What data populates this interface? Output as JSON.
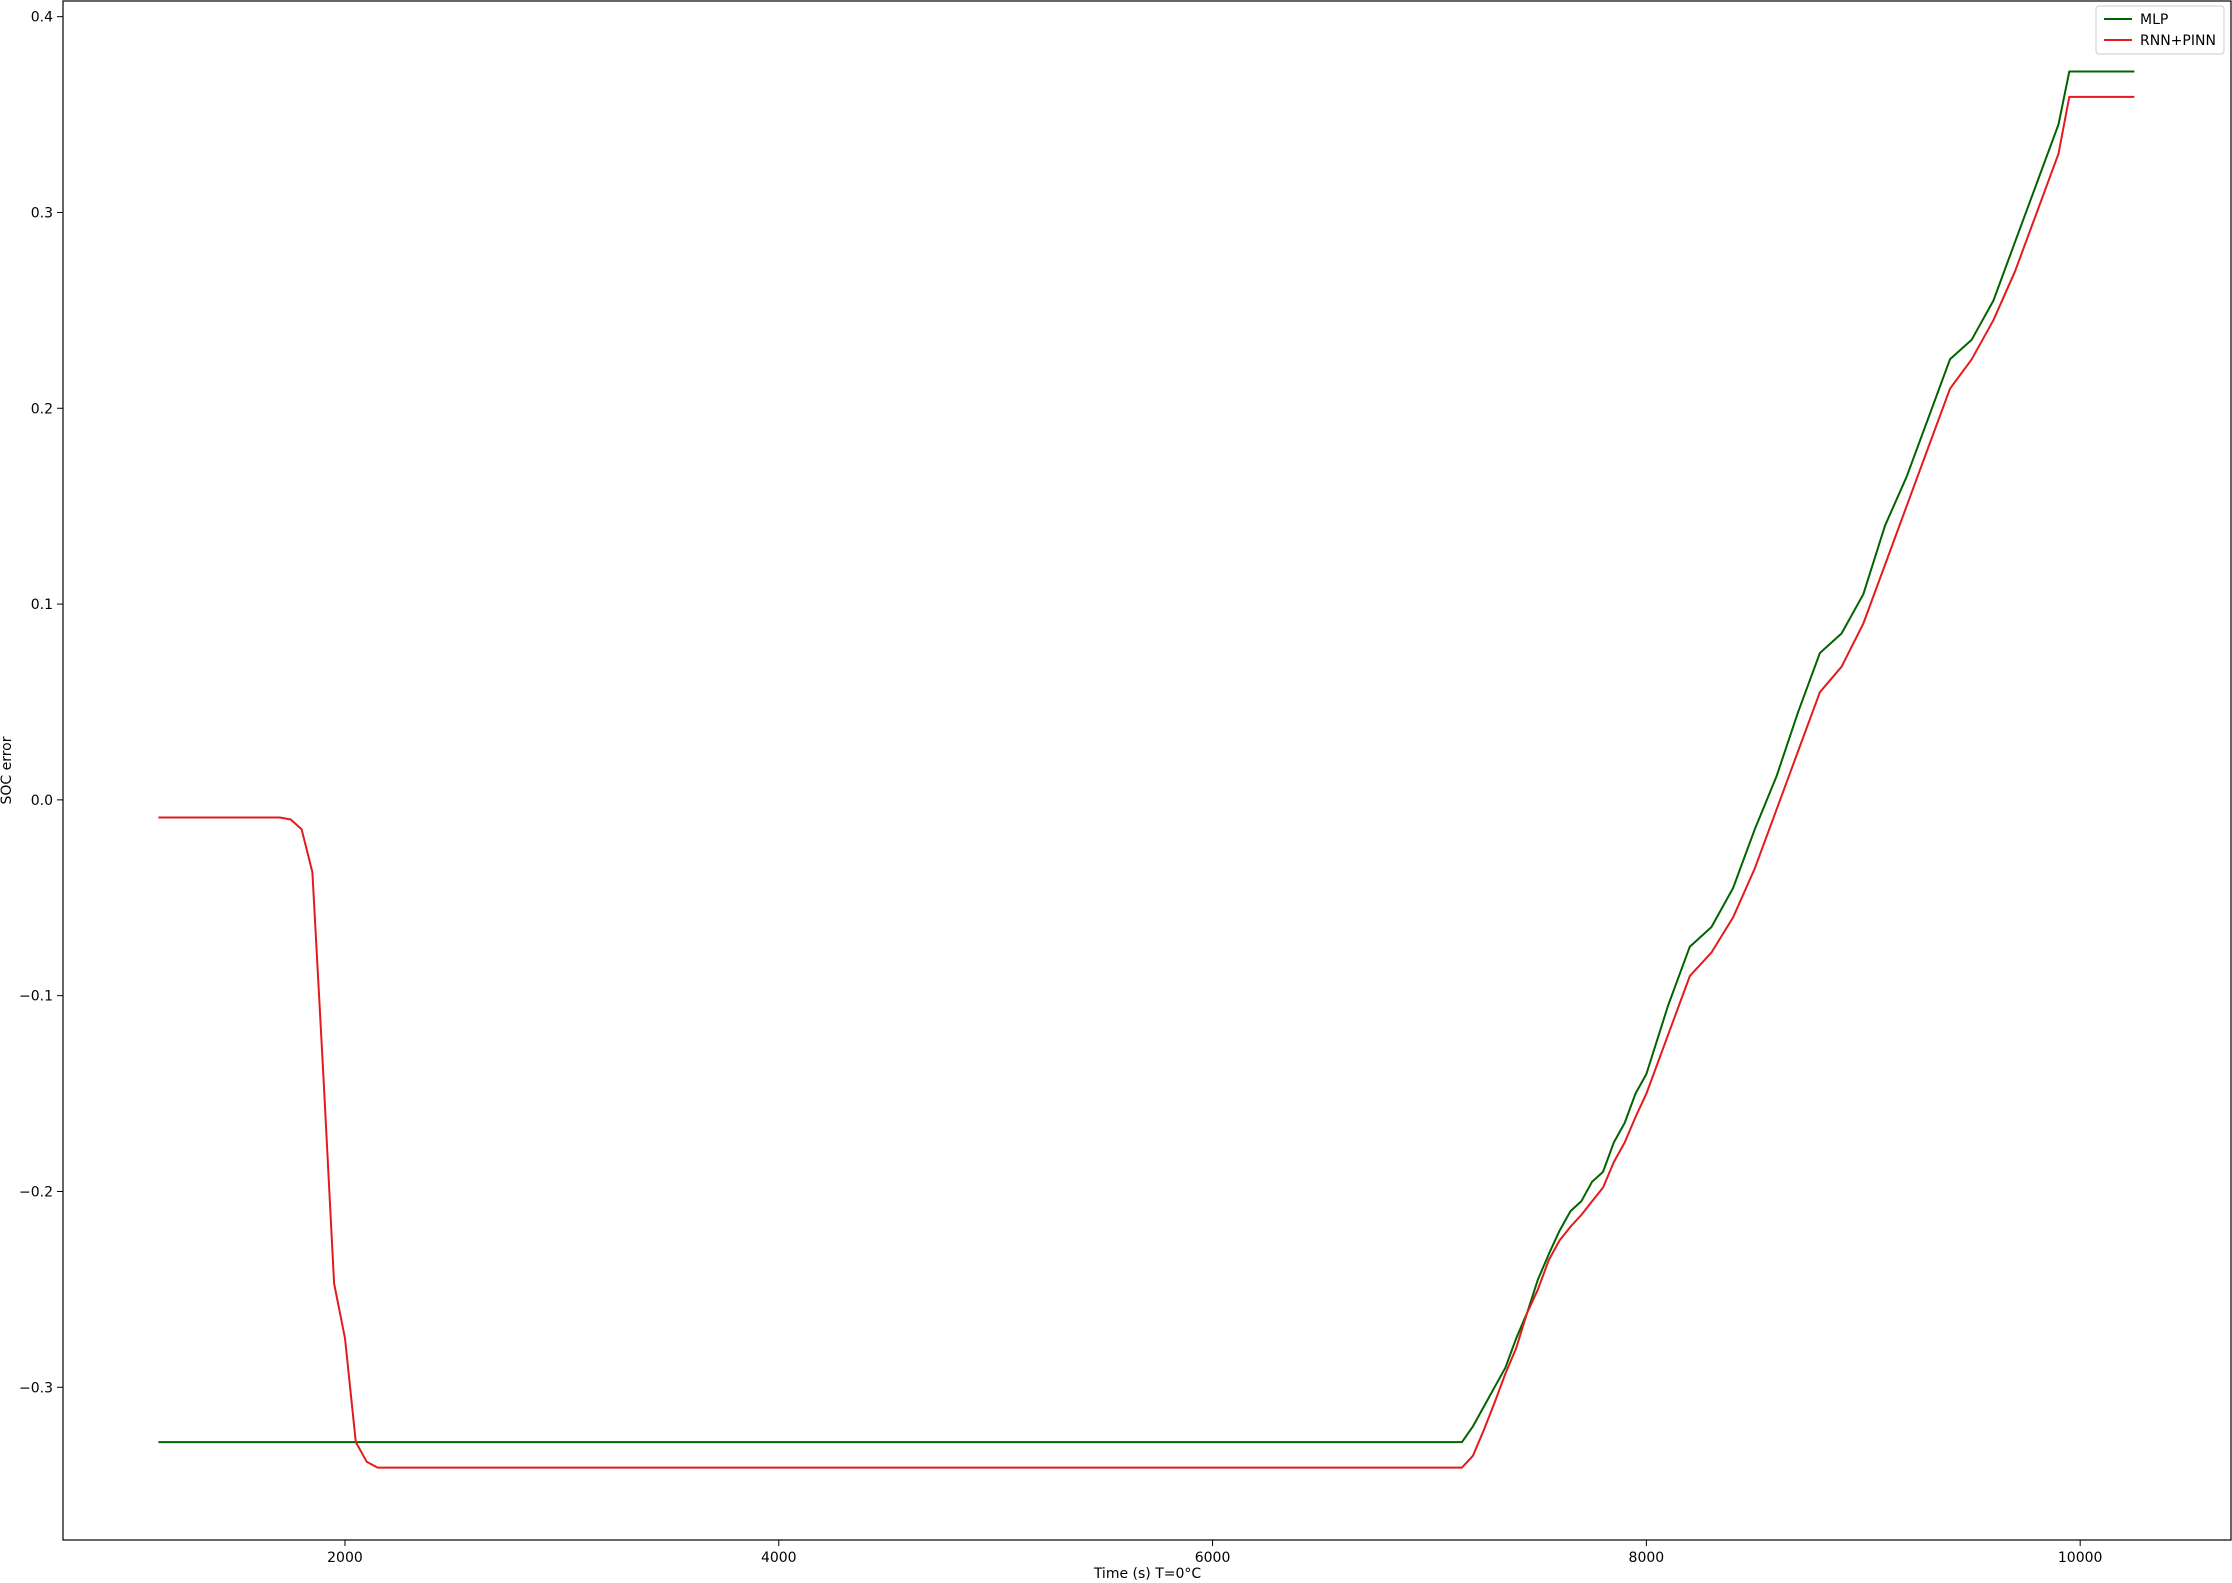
{
  "chart_data": {
    "type": "line",
    "xlabel": "Time (s) T=0°C",
    "ylabel": "SOC error",
    "xlim": [
      700,
      10700
    ],
    "ylim": [
      -0.378,
      0.408
    ],
    "x_ticks": [
      2000,
      4000,
      6000,
      8000,
      10000
    ],
    "y_ticks": [
      -0.3,
      -0.2,
      -0.1,
      0.0,
      0.1,
      0.2,
      0.3,
      0.4
    ],
    "x_tick_labels": [
      "2000",
      "4000",
      "6000",
      "8000",
      "10000"
    ],
    "y_tick_labels": [
      "−0.3",
      "−0.2",
      "−0.1",
      "0.0",
      "0.1",
      "0.2",
      "0.3",
      "0.4"
    ],
    "grid": false,
    "legend_position": "top-right",
    "series": [
      {
        "name": "MLP",
        "color": "#006400",
        "x": [
          1140,
          7150,
          7200,
          7250,
          7300,
          7350,
          7400,
          7450,
          7500,
          7550,
          7600,
          7650,
          7700,
          7750,
          7800,
          7850,
          7900,
          7950,
          8000,
          8100,
          8200,
          8300,
          8400,
          8500,
          8600,
          8700,
          8800,
          8900,
          9000,
          9100,
          9200,
          9300,
          9400,
          9500,
          9600,
          9700,
          9800,
          9900,
          9950,
          10250
        ],
        "y": [
          -0.328,
          -0.328,
          -0.32,
          -0.31,
          -0.3,
          -0.29,
          -0.275,
          -0.262,
          -0.245,
          -0.232,
          -0.22,
          -0.21,
          -0.205,
          -0.195,
          -0.19,
          -0.175,
          -0.165,
          -0.15,
          -0.14,
          -0.105,
          -0.075,
          -0.065,
          -0.045,
          -0.015,
          0.012,
          0.045,
          0.075,
          0.085,
          0.105,
          0.14,
          0.165,
          0.195,
          0.225,
          0.235,
          0.255,
          0.285,
          0.315,
          0.345,
          0.372,
          0.372
        ]
      },
      {
        "name": "RNN+PINN",
        "color": "#e41a1c",
        "x": [
          1140,
          1700,
          1750,
          1800,
          1850,
          1900,
          1950,
          2000,
          2050,
          2100,
          2150,
          2200,
          2250,
          7150,
          7200,
          7250,
          7300,
          7350,
          7400,
          7450,
          7500,
          7550,
          7600,
          7650,
          7700,
          7750,
          7800,
          7850,
          7900,
          7950,
          8000,
          8100,
          8200,
          8300,
          8400,
          8500,
          8600,
          8700,
          8800,
          8900,
          9000,
          9100,
          9200,
          9300,
          9400,
          9500,
          9600,
          9700,
          9800,
          9900,
          9950,
          10250
        ],
        "y": [
          -0.009,
          -0.009,
          -0.01,
          -0.015,
          -0.037,
          -0.14,
          -0.247,
          -0.275,
          -0.328,
          -0.338,
          -0.341,
          -0.341,
          -0.341,
          -0.341,
          -0.335,
          -0.322,
          -0.308,
          -0.293,
          -0.28,
          -0.262,
          -0.25,
          -0.235,
          -0.225,
          -0.218,
          -0.212,
          -0.205,
          -0.198,
          -0.185,
          -0.175,
          -0.162,
          -0.15,
          -0.12,
          -0.09,
          -0.078,
          -0.06,
          -0.035,
          -0.005,
          0.025,
          0.055,
          0.068,
          0.09,
          0.12,
          0.15,
          0.18,
          0.21,
          0.225,
          0.245,
          0.27,
          0.3,
          0.33,
          0.359,
          0.359
        ]
      }
    ]
  }
}
